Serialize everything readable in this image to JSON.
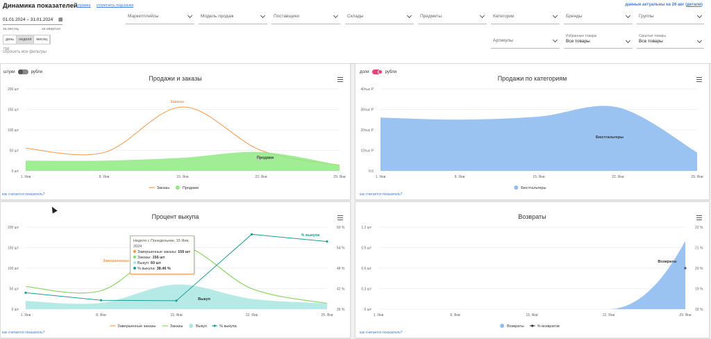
{
  "header": {
    "title": "Динамика показателей",
    "links": [
      "справка",
      "отключить подсказки"
    ],
    "freshness": "данные актуальны на 26 авг",
    "details": "детали"
  },
  "period": {
    "range": "01.01.2024 – 31.01.2024",
    "quick": [
      "за месяц",
      "за квартал"
    ],
    "granularity": [
      "день",
      "неделя",
      "месяц",
      "год"
    ],
    "reset": "сбросить все фильтры"
  },
  "filters": [
    "Маркетплейсы",
    "Модель продаж",
    "Поставщики",
    "Склады",
    "Предметы",
    "Категории",
    "Бренды",
    "Группы",
    "Артикулы"
  ],
  "extra_filters": [
    {
      "caption": "Избранные товары",
      "value": "Все товары"
    },
    {
      "caption": "Скрытые товары",
      "value": "Все товары"
    }
  ],
  "panels": [
    {
      "toggle_left": "штуки",
      "toggle_right": "рубли",
      "how": "как считается показатель?"
    },
    {
      "toggle_left": "доли",
      "toggle_right": "рубли",
      "how": "как считается показатель?"
    },
    {
      "how": "как считается показатель?"
    },
    {
      "how": "как считается показатель?"
    }
  ],
  "tooltip": {
    "header": "Неделя с Понедельник, 15 Янв, 2024",
    "rows": [
      {
        "label": "Завершенные заказы",
        "value": "156 шт"
      },
      {
        "label": "Заказы",
        "value": "156 шт"
      },
      {
        "label": "Выкуп",
        "value": "60 шт"
      },
      {
        "label": "% выкупа",
        "value": "38.46 %"
      }
    ]
  },
  "colors": {
    "orders": "#f39a4c",
    "sales": "#90ea84",
    "category": "#90bdf0",
    "buyout": "#a9e6e2",
    "buyout_pct": "#1a9e95",
    "returns": "#90bdf0",
    "accent": "#3d7dd8",
    "toggle_on": "#e0457b"
  },
  "chart_data": [
    {
      "type": "line",
      "title": "Продажи и заказы",
      "x": [
        "1. Янв",
        "8. Янв",
        "15. Янв",
        "22. Янв",
        "29. Янв"
      ],
      "yticks": [
        "0 шт",
        "50 шт",
        "100 шт",
        "150 шт",
        "200 шт"
      ],
      "ylim": [
        0,
        200
      ],
      "series": [
        {
          "name": "Заказы",
          "kind": "spline",
          "label": "Заказы",
          "values": [
            55,
            45,
            156,
            50,
            14
          ]
        },
        {
          "name": "Продажи",
          "kind": "area",
          "label": "Продажи",
          "values": [
            25,
            25,
            32,
            46,
            14
          ]
        }
      ],
      "legend": "bottom"
    },
    {
      "type": "area",
      "title": "Продажи по категориям",
      "x": [
        "1. Янв",
        "8. Янв",
        "15. Янв",
        "22. Янв",
        "29. Янв"
      ],
      "yticks": [
        "0.0",
        "10тыс Р",
        "20тыс Р",
        "30тыс Р",
        "40тыс Р"
      ],
      "ylim": [
        0,
        40000
      ],
      "series": [
        {
          "name": "Бюстгальтеры",
          "kind": "area",
          "label": "Бюстгальтеры",
          "values": [
            26000,
            25000,
            26500,
            31000,
            9000
          ]
        }
      ],
      "legend": "bottom"
    },
    {
      "type": "line",
      "title": "Процент выкупа",
      "x": [
        "1. Янв",
        "8. Янв",
        "15. Янв",
        "22. Янв",
        "29. Янв"
      ],
      "yticks": [
        "0 шт",
        "50 шт",
        "100 шт",
        "150 шт",
        "200 шт"
      ],
      "y2ticks": [
        "36 %",
        "42 %",
        "48 %",
        "54 %",
        "60 %"
      ],
      "ylim": [
        0,
        200
      ],
      "y2lim": [
        36,
        60
      ],
      "series": [
        {
          "name": "Завершенные заказы",
          "kind": "spline",
          "label": "Завершенные заказы",
          "values": [
            55,
            45,
            156,
            50,
            14
          ]
        },
        {
          "name": "Заказы",
          "kind": "spline",
          "values": [
            55,
            45,
            156,
            50,
            14
          ]
        },
        {
          "name": "Выкуп",
          "kind": "area",
          "label": "Выкуп",
          "values": [
            20,
            15,
            60,
            25,
            14
          ]
        },
        {
          "name": "% выкупа",
          "kind": "line",
          "axis": "right",
          "label": "% выкупа",
          "values": [
            40.8,
            38.6,
            38.46,
            57.9,
            55.8
          ]
        }
      ],
      "legend": "bottom"
    },
    {
      "type": "area",
      "title": "Возвраты",
      "x": [
        "1. Янв",
        "8. Янв",
        "15. Янв",
        "22. Янв",
        "29. Янв"
      ],
      "yticks": [
        "0 шт",
        "0.3 шт",
        "0.6 шт",
        "0.9 шт",
        "1.2 шт"
      ],
      "y2ticks": [
        "18 %",
        "19 %",
        "20 %",
        "21 %",
        "22 %"
      ],
      "ylim": [
        0,
        1.2
      ],
      "y2lim": [
        18,
        22
      ],
      "series": [
        {
          "name": "Возвраты",
          "kind": "area",
          "label": "Возвраты",
          "values": [
            0,
            0,
            0,
            0,
            1
          ]
        },
        {
          "name": "% возвратов",
          "kind": "point",
          "axis": "right",
          "values": [
            null,
            null,
            null,
            null,
            20
          ]
        }
      ],
      "legend": "bottom"
    }
  ]
}
